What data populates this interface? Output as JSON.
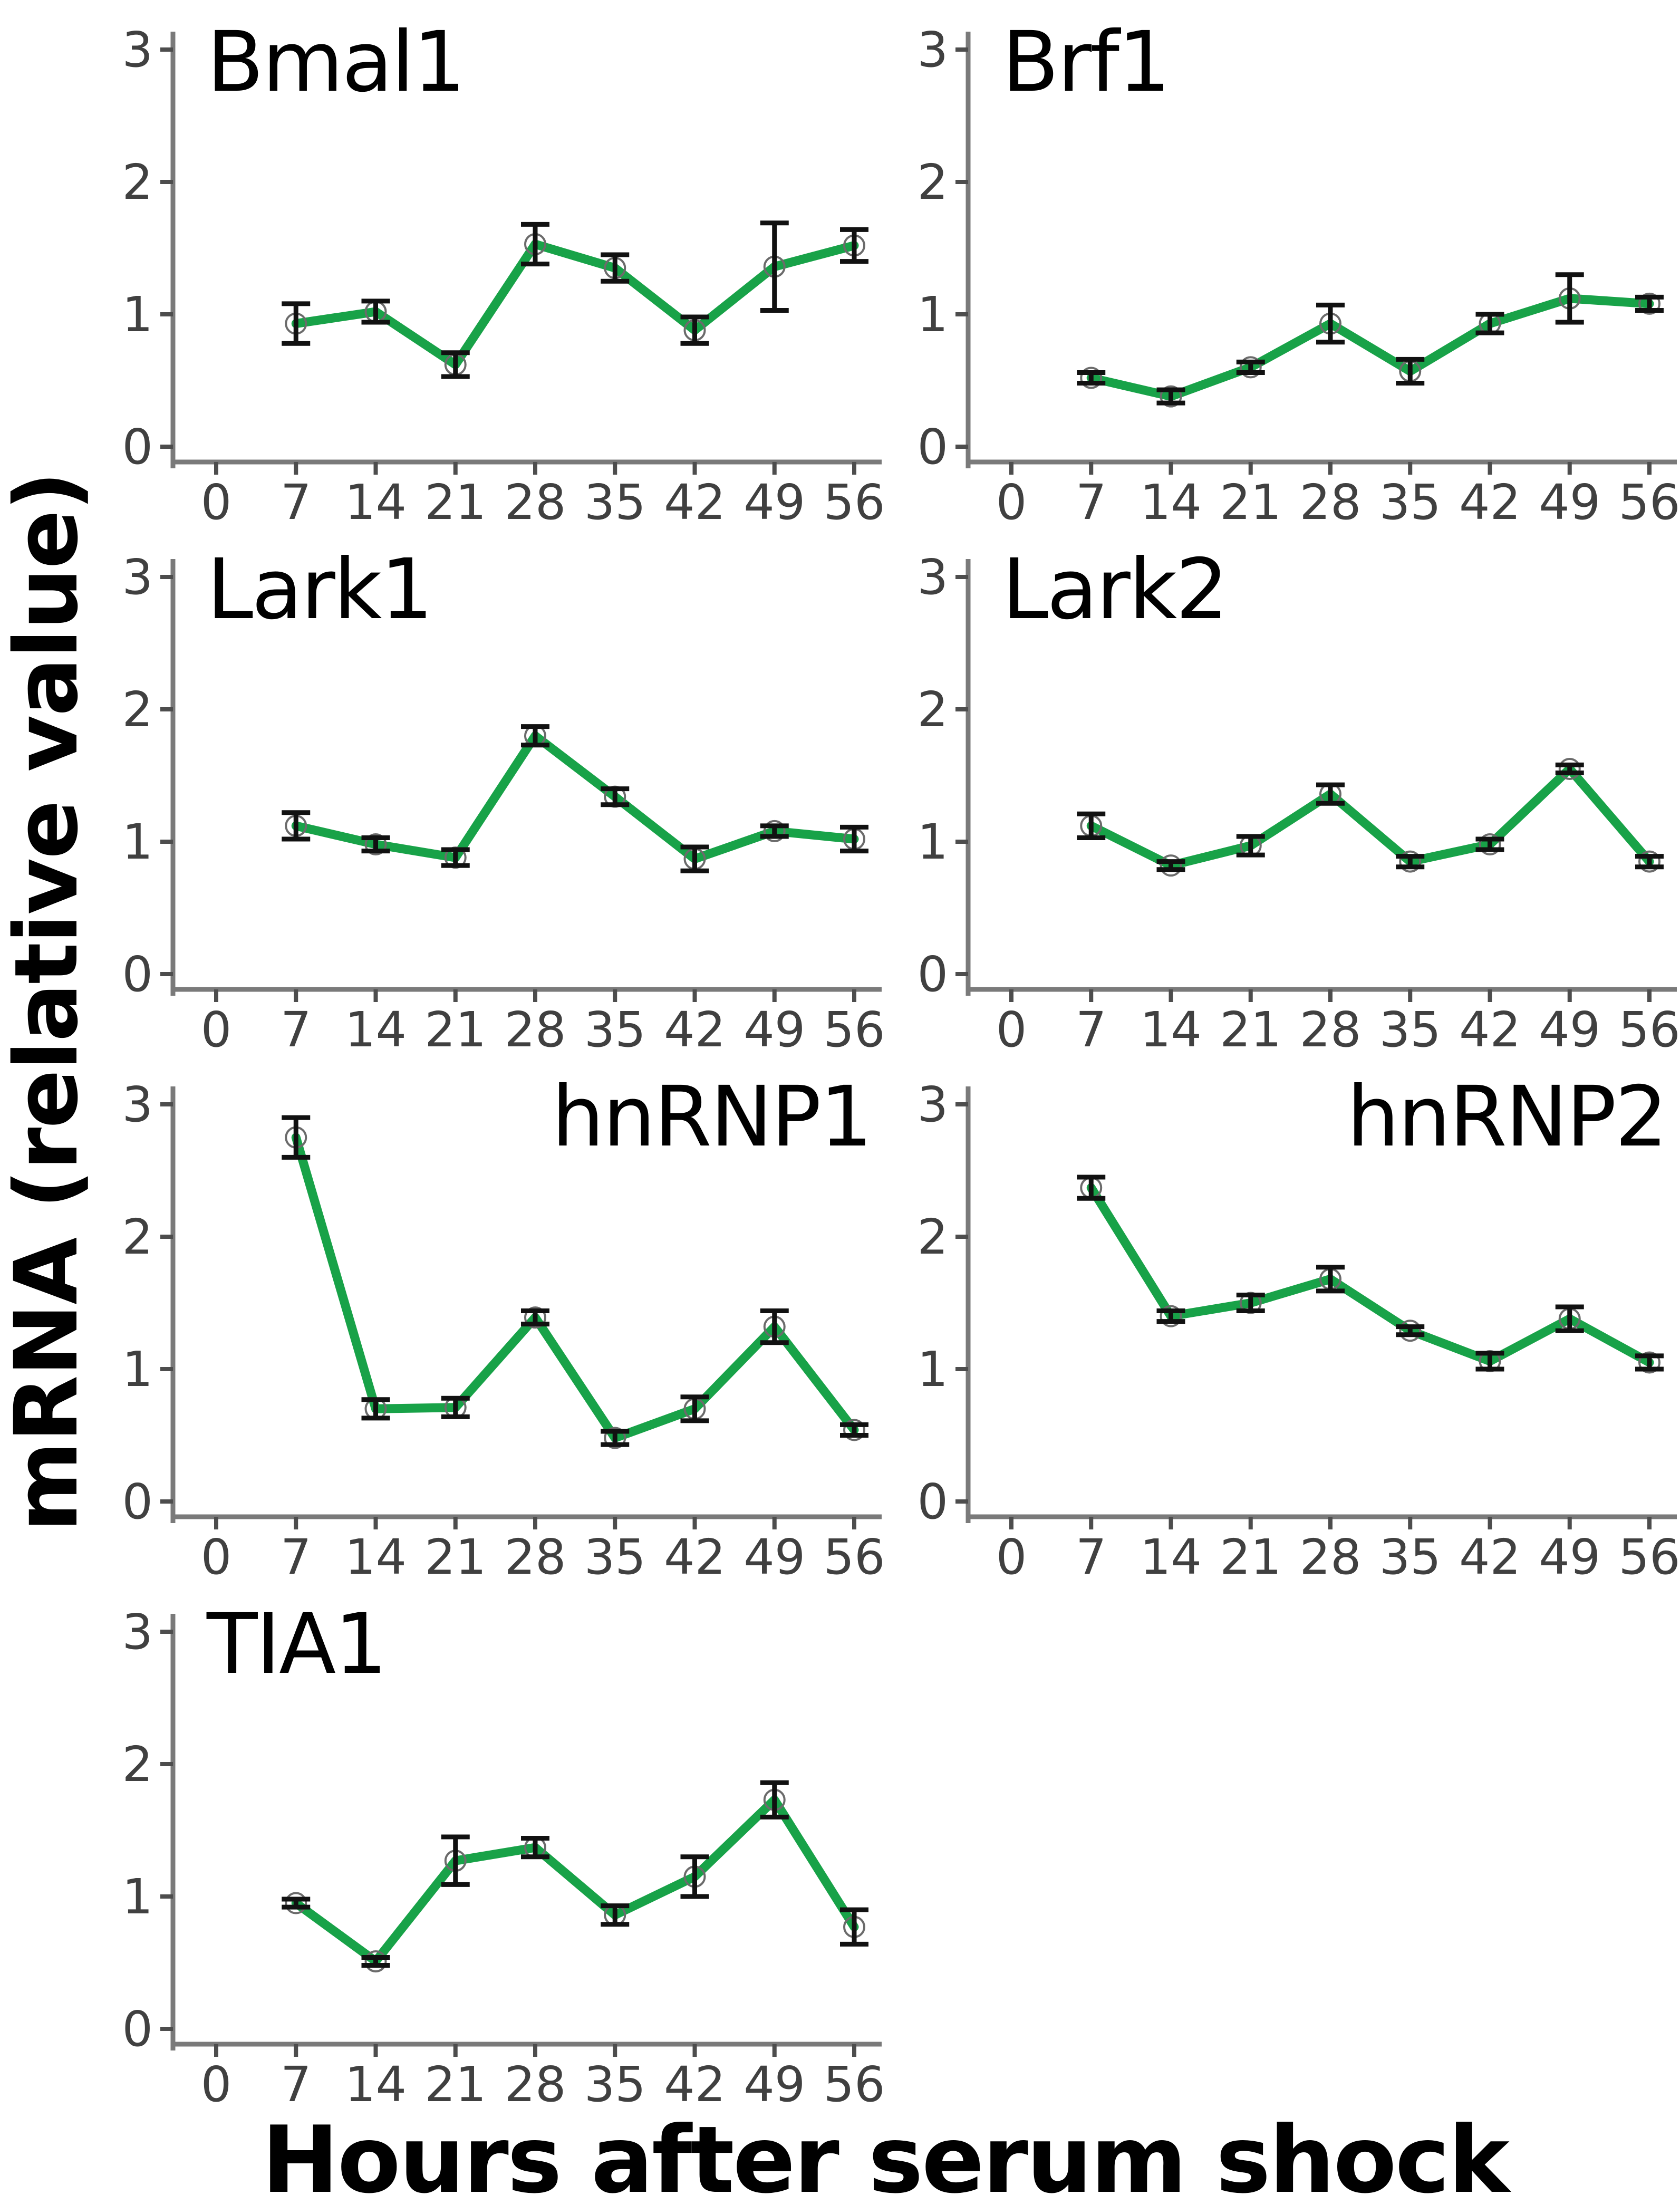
{
  "figure": {
    "ylabel": "mRNA (relative value)",
    "xlabel": "Hours after serum shock",
    "colors": {
      "line": "#18a248",
      "axis_line": "#7a7a7a",
      "tick_mark": "#4d4d4d",
      "tick_label": "#404040",
      "error_bar": "#111111",
      "marker_outline": "#6b6b6b",
      "panel_title": "#000000",
      "background": "#ffffff"
    }
  },
  "chart_data": [
    {
      "type": "line",
      "title": "Bmal1",
      "title_align": "left",
      "x": [
        7,
        14,
        21,
        28,
        35,
        42,
        49,
        56
      ],
      "values": [
        0.93,
        1.02,
        0.62,
        1.53,
        1.35,
        0.88,
        1.36,
        1.52
      ],
      "errors": [
        0.15,
        0.08,
        0.09,
        0.15,
        0.1,
        0.1,
        0.33,
        0.12
      ],
      "xticks": [
        0,
        7,
        14,
        21,
        28,
        35,
        42,
        49,
        56
      ],
      "yticks": [
        0,
        1,
        2,
        3
      ],
      "ylim": [
        0,
        3
      ],
      "xlim": [
        0,
        56
      ]
    },
    {
      "type": "line",
      "title": "Brf1",
      "title_align": "left",
      "x": [
        7,
        14,
        21,
        28,
        35,
        42,
        49,
        56
      ],
      "values": [
        0.52,
        0.38,
        0.6,
        0.93,
        0.57,
        0.93,
        1.12,
        1.08
      ],
      "errors": [
        0.04,
        0.05,
        0.04,
        0.14,
        0.09,
        0.07,
        0.18,
        0.05
      ],
      "xticks": [
        0,
        7,
        14,
        21,
        28,
        35,
        42,
        49,
        56
      ],
      "yticks": [
        0,
        1,
        2,
        3
      ],
      "ylim": [
        0,
        3
      ],
      "xlim": [
        0,
        56
      ]
    },
    {
      "type": "line",
      "title": "Lark1",
      "title_align": "left",
      "x": [
        7,
        14,
        21,
        28,
        35,
        42,
        49,
        56
      ],
      "values": [
        1.12,
        0.98,
        0.88,
        1.8,
        1.34,
        0.87,
        1.08,
        1.02
      ],
      "errors": [
        0.1,
        0.05,
        0.06,
        0.07,
        0.06,
        0.09,
        0.04,
        0.09
      ],
      "xticks": [
        0,
        7,
        14,
        21,
        28,
        35,
        42,
        49,
        56
      ],
      "yticks": [
        0,
        1,
        2,
        3
      ],
      "ylim": [
        0,
        3
      ],
      "xlim": [
        0,
        56
      ]
    },
    {
      "type": "line",
      "title": "Lark2",
      "title_align": "left",
      "x": [
        7,
        14,
        21,
        28,
        35,
        42,
        49,
        56
      ],
      "values": [
        1.12,
        0.82,
        0.97,
        1.36,
        0.85,
        0.98,
        1.55,
        0.85
      ],
      "errors": [
        0.09,
        0.03,
        0.07,
        0.07,
        0.04,
        0.04,
        0.03,
        0.04
      ],
      "xticks": [
        0,
        7,
        14,
        21,
        28,
        35,
        42,
        49,
        56
      ],
      "yticks": [
        0,
        1,
        2,
        3
      ],
      "ylim": [
        0,
        3
      ],
      "xlim": [
        0,
        56
      ]
    },
    {
      "type": "line",
      "title": "hnRNP1",
      "title_align": "right",
      "x": [
        7,
        14,
        21,
        28,
        35,
        42,
        49,
        56
      ],
      "values": [
        2.75,
        0.7,
        0.71,
        1.39,
        0.48,
        0.7,
        1.32,
        0.54
      ],
      "errors": [
        0.15,
        0.07,
        0.07,
        0.05,
        0.05,
        0.09,
        0.12,
        0.04
      ],
      "xticks": [
        0,
        7,
        14,
        21,
        28,
        35,
        42,
        49,
        56
      ],
      "yticks": [
        0,
        1,
        2,
        3
      ],
      "ylim": [
        0,
        3
      ],
      "xlim": [
        0,
        56
      ]
    },
    {
      "type": "line",
      "title": "hnRNP2",
      "title_align": "right",
      "x": [
        7,
        14,
        21,
        28,
        35,
        42,
        49,
        56
      ],
      "values": [
        2.37,
        1.4,
        1.5,
        1.68,
        1.29,
        1.06,
        1.38,
        1.05
      ],
      "errors": [
        0.08,
        0.04,
        0.06,
        0.09,
        0.03,
        0.06,
        0.09,
        0.05
      ],
      "xticks": [
        0,
        7,
        14,
        21,
        28,
        35,
        42,
        49,
        56
      ],
      "yticks": [
        0,
        1,
        2,
        3
      ],
      "ylim": [
        0,
        3
      ],
      "xlim": [
        0,
        56
      ]
    },
    {
      "type": "line",
      "title": "TIA1",
      "title_align": "left",
      "x": [
        7,
        14,
        21,
        28,
        35,
        42,
        49,
        56
      ],
      "values": [
        0.95,
        0.51,
        1.27,
        1.37,
        0.86,
        1.15,
        1.73,
        0.77
      ],
      "errors": [
        0.03,
        0.03,
        0.18,
        0.07,
        0.07,
        0.15,
        0.13,
        0.13
      ],
      "xticks": [
        0,
        7,
        14,
        21,
        28,
        35,
        42,
        49,
        56
      ],
      "yticks": [
        0,
        1,
        2,
        3
      ],
      "ylim": [
        0,
        3
      ],
      "xlim": [
        0,
        56
      ]
    }
  ]
}
